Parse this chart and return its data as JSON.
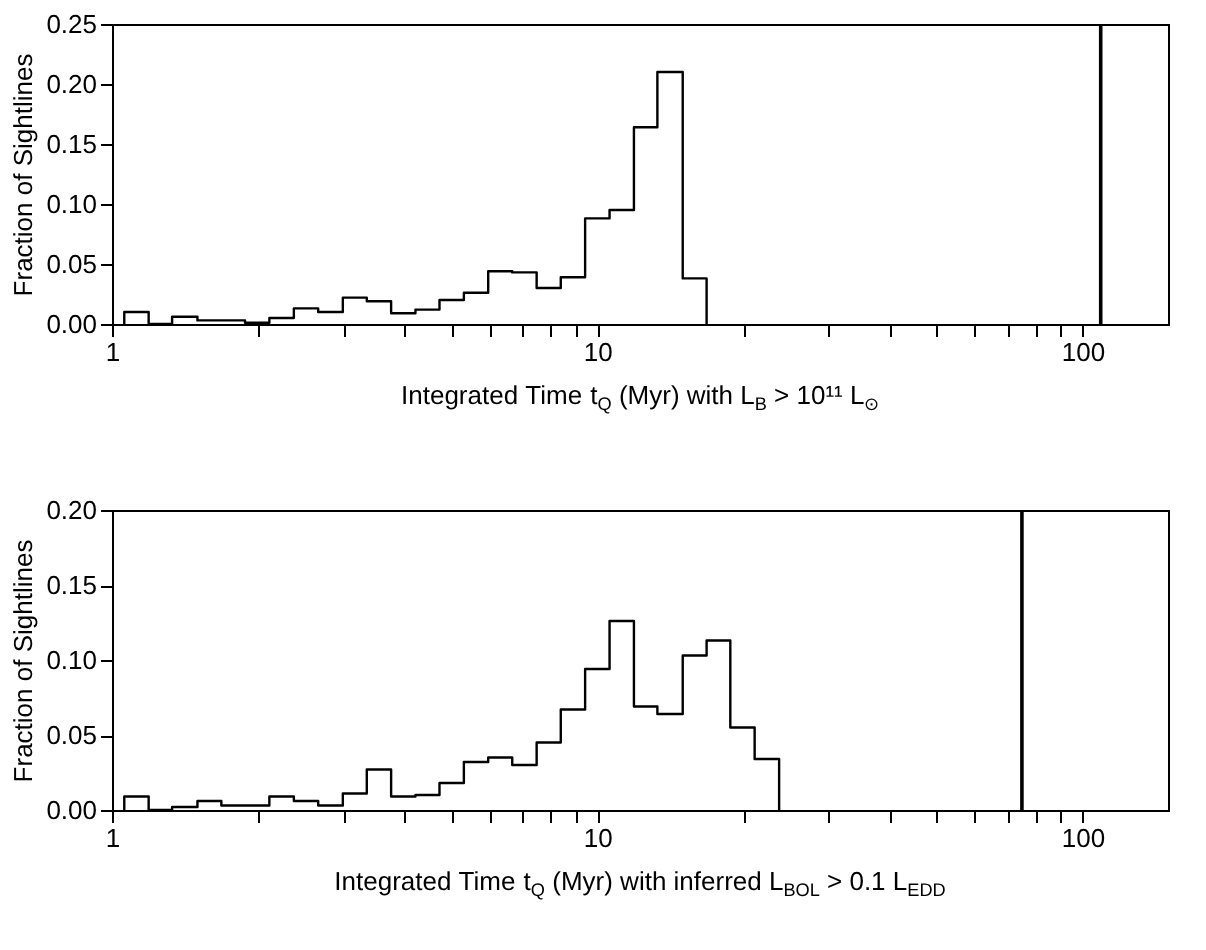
{
  "chart_data": [
    {
      "type": "histogram",
      "xlabel": "Integrated Time t$_{Q}$ (Myr) with L$_{B}$ > 10¹¹ L$_{⊙}$",
      "ylabel": "Fraction of Sightlines",
      "log": "x",
      "bins": [
        1.06,
        1.19,
        1.33,
        1.5,
        1.68,
        1.88,
        2.11,
        2.37,
        2.66,
        2.99,
        3.35,
        3.76,
        4.22,
        4.73,
        5.31,
        5.96,
        6.68,
        7.5,
        8.41,
        9.44,
        10.6,
        11.9,
        13.3,
        15.0,
        16.8
      ],
      "values": [
        0.01,
        0,
        0.006,
        0.003,
        0.003,
        0.001,
        0.005,
        0.013,
        0.01,
        0.022,
        0.019,
        0.009,
        0.012,
        0.02,
        0.026,
        0.044,
        0.043,
        0.03,
        0.039,
        0.088,
        0.095,
        0.164,
        0.21,
        0.038
      ],
      "color": "#000000",
      "xlim": [
        1,
        150
      ],
      "ylim": [
        0,
        0.25
      ],
      "xticks": [
        1,
        {
          "value": 2,
          "label": null
        },
        {
          "value": 3,
          "label": null
        },
        {
          "value": 4,
          "label": null
        },
        {
          "value": 5,
          "label": null
        },
        {
          "value": 6,
          "label": null
        },
        {
          "value": 7,
          "label": null
        },
        {
          "value": 8,
          "label": null
        },
        {
          "value": 9,
          "label": null
        },
        10,
        {
          "value": 20,
          "label": null
        },
        {
          "value": 30,
          "label": null
        },
        {
          "value": 40,
          "label": null
        },
        {
          "value": 50,
          "label": null
        },
        {
          "value": 60,
          "label": null
        },
        {
          "value": 70,
          "label": null
        },
        {
          "value": 80,
          "label": null
        },
        {
          "value": 90,
          "label": null
        },
        100
      ],
      "yticks": [
        {
          "value": 0,
          "label": "0.00"
        },
        {
          "value": 0.05,
          "label": "0.05"
        },
        {
          "value": 0.1,
          "label": "0.10"
        },
        {
          "value": 0.15,
          "label": "0.15"
        },
        {
          "value": 0.2,
          "label": "0.20"
        },
        {
          "value": 0.25,
          "label": "0.25"
        }
      ],
      "ref_lines": [
        {
          "axis": "x",
          "value": 109,
          "color": "#000000"
        }
      ],
      "grid": false
    },
    {
      "type": "histogram",
      "xlabel": "Integrated Time t$_{Q}$ (Myr) with inferred L$_{BOL}$ > 0.1 L$_{EDD}$",
      "ylabel": "Fraction of Sightlines",
      "log": "x",
      "bins": [
        1.06,
        1.19,
        1.33,
        1.5,
        1.68,
        1.88,
        2.11,
        2.37,
        2.66,
        2.99,
        3.35,
        3.76,
        4.22,
        4.73,
        5.31,
        5.96,
        6.68,
        7.5,
        8.41,
        9.44,
        10.6,
        11.9,
        13.3,
        15.0,
        16.8,
        18.8,
        21.1,
        23.7
      ],
      "values": [
        0.009,
        0,
        0.002,
        0.006,
        0.003,
        0.003,
        0.009,
        0.006,
        0.003,
        0.011,
        0.027,
        0.009,
        0.01,
        0.018,
        0.032,
        0.035,
        0.03,
        0.045,
        0.067,
        0.094,
        0.126,
        0.069,
        0.064,
        0.103,
        0.113,
        0.055,
        0.034
      ],
      "color": "#000000",
      "xlim": [
        1,
        150
      ],
      "ylim": [
        0,
        0.2
      ],
      "xticks": [
        1,
        {
          "value": 2,
          "label": null
        },
        {
          "value": 3,
          "label": null
        },
        {
          "value": 4,
          "label": null
        },
        {
          "value": 5,
          "label": null
        },
        {
          "value": 6,
          "label": null
        },
        {
          "value": 7,
          "label": null
        },
        {
          "value": 8,
          "label": null
        },
        {
          "value": 9,
          "label": null
        },
        10,
        {
          "value": 20,
          "label": null
        },
        {
          "value": 30,
          "label": null
        },
        {
          "value": 40,
          "label": null
        },
        {
          "value": 50,
          "label": null
        },
        {
          "value": 60,
          "label": null
        },
        {
          "value": 70,
          "label": null
        },
        {
          "value": 80,
          "label": null
        },
        {
          "value": 90,
          "label": null
        },
        100
      ],
      "yticks": [
        {
          "value": 0,
          "label": "0.00"
        },
        {
          "value": 0.05,
          "label": "0.05"
        },
        {
          "value": 0.1,
          "label": "0.10"
        },
        {
          "value": 0.15,
          "label": "0.15"
        },
        {
          "value": 0.2,
          "label": "0.20"
        }
      ],
      "ref_lines": [
        {
          "axis": "x",
          "value": 75,
          "color": "#000000"
        }
      ],
      "grid": false
    }
  ]
}
